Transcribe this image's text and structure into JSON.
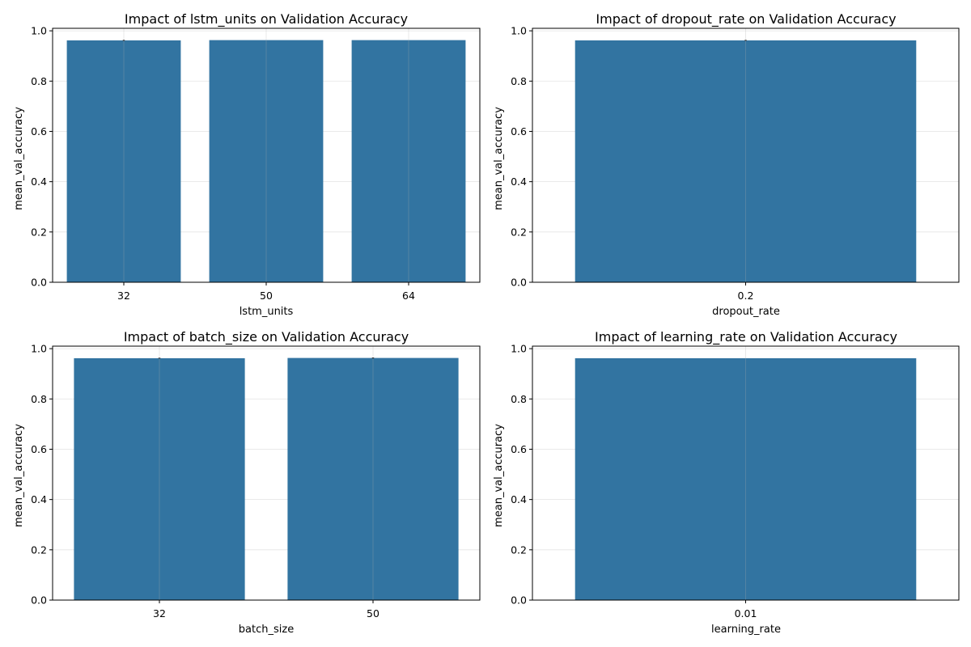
{
  "chart_data": [
    {
      "type": "bar",
      "title": "Impact of lstm_units on Validation Accuracy",
      "xlabel": "lstm_units",
      "ylabel": "mean_val_accuracy",
      "categories": [
        "32",
        "50",
        "64"
      ],
      "values": [
        0.962,
        0.963,
        0.963
      ],
      "error": [
        0.004,
        0.0,
        0.0
      ],
      "ylim": [
        0,
        1.01
      ],
      "yticks": [
        "0.0",
        "0.2",
        "0.4",
        "0.6",
        "0.8",
        "1.0"
      ],
      "grid": true,
      "bar_color": "#3274a1"
    },
    {
      "type": "bar",
      "title": "Impact of dropout_rate on Validation Accuracy",
      "xlabel": "dropout_rate",
      "ylabel": "mean_val_accuracy",
      "categories": [
        "0.2"
      ],
      "values": [
        0.962
      ],
      "error": [
        0.004
      ],
      "ylim": [
        0,
        1.01
      ],
      "yticks": [
        "0.0",
        "0.2",
        "0.4",
        "0.6",
        "0.8",
        "1.0"
      ],
      "grid": true,
      "bar_color": "#3274a1"
    },
    {
      "type": "bar",
      "title": "Impact of batch_size on Validation Accuracy",
      "xlabel": "batch_size",
      "ylabel": "mean_val_accuracy",
      "categories": [
        "32",
        "50"
      ],
      "values": [
        0.962,
        0.963
      ],
      "error": [
        0.004,
        0.004
      ],
      "ylim": [
        0,
        1.01
      ],
      "yticks": [
        "0.0",
        "0.2",
        "0.4",
        "0.6",
        "0.8",
        "1.0"
      ],
      "grid": true,
      "bar_color": "#3274a1"
    },
    {
      "type": "bar",
      "title": "Impact of learning_rate on Validation Accuracy",
      "xlabel": "learning_rate",
      "ylabel": "mean_val_accuracy",
      "categories": [
        "0.01"
      ],
      "values": [
        0.962
      ],
      "error": [
        0.0
      ],
      "ylim": [
        0,
        1.01
      ],
      "yticks": [
        "0.0",
        "0.2",
        "0.4",
        "0.6",
        "0.8",
        "1.0"
      ],
      "grid": true,
      "bar_color": "#3274a1"
    }
  ]
}
